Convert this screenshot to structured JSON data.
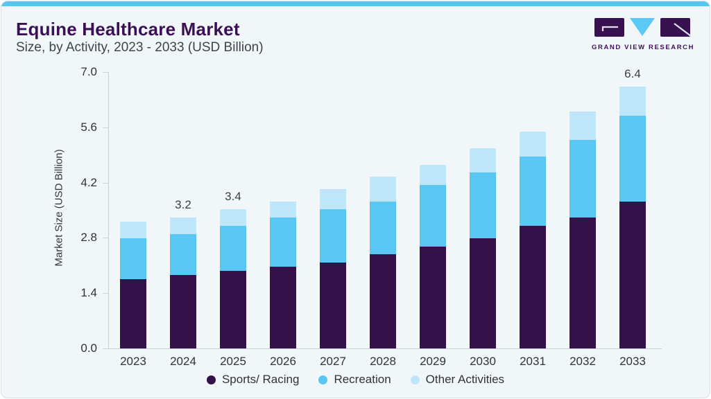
{
  "page": {
    "title": "Equine Healthcare Market",
    "subtitle": "Size, by Activity, 2023 - 2033 (USD Billion)"
  },
  "logo": {
    "text": "GRAND VIEW RESEARCH"
  },
  "colors": {
    "accent_bar": "#58C4F0",
    "card_bg": "#F1F6F9",
    "card_border": "#D8E0E7",
    "title_text": "#3A1055",
    "axis": "#C8CFD6",
    "tick_text": "#2E3338",
    "logo_purple": "#371150",
    "logo_blue": "#5BC8F5"
  },
  "chart_data": {
    "type": "bar",
    "stacked": true,
    "title": "Equine Healthcare Market Size, by Activity, 2023 - 2033 (USD Billion)",
    "xlabel": "",
    "ylabel": "Market Size (USD Billion)",
    "ylim": [
      0,
      7.0
    ],
    "yticks": [
      "0.0",
      "1.4",
      "2.8",
      "4.2",
      "5.6",
      "7.0"
    ],
    "grid": false,
    "legend_position": "bottom",
    "categories": [
      "2023",
      "2024",
      "2025",
      "2026",
      "2027",
      "2028",
      "2029",
      "2030",
      "2031",
      "2032",
      "2033"
    ],
    "series": [
      {
        "name": "Sports/ Racing",
        "color": "#341148",
        "values": [
          1.7,
          1.8,
          1.9,
          2.0,
          2.1,
          2.3,
          2.5,
          2.7,
          3.0,
          3.2,
          3.6
        ]
      },
      {
        "name": "Recreation",
        "color": "#5AC6F3",
        "values": [
          1.0,
          1.0,
          1.1,
          1.2,
          1.3,
          1.3,
          1.5,
          1.6,
          1.7,
          1.9,
          2.1
        ]
      },
      {
        "name": "Other Activities",
        "color": "#BDE6FA",
        "values": [
          0.4,
          0.4,
          0.4,
          0.4,
          0.5,
          0.6,
          0.5,
          0.6,
          0.6,
          0.7,
          0.7
        ]
      }
    ],
    "totals": [
      3.1,
      3.2,
      3.4,
      3.6,
      3.9,
      4.2,
      4.5,
      4.9,
      5.3,
      5.8,
      6.4
    ],
    "total_labels": {
      "2024": "3.2",
      "2025": "3.4",
      "2033": "6.4"
    }
  }
}
